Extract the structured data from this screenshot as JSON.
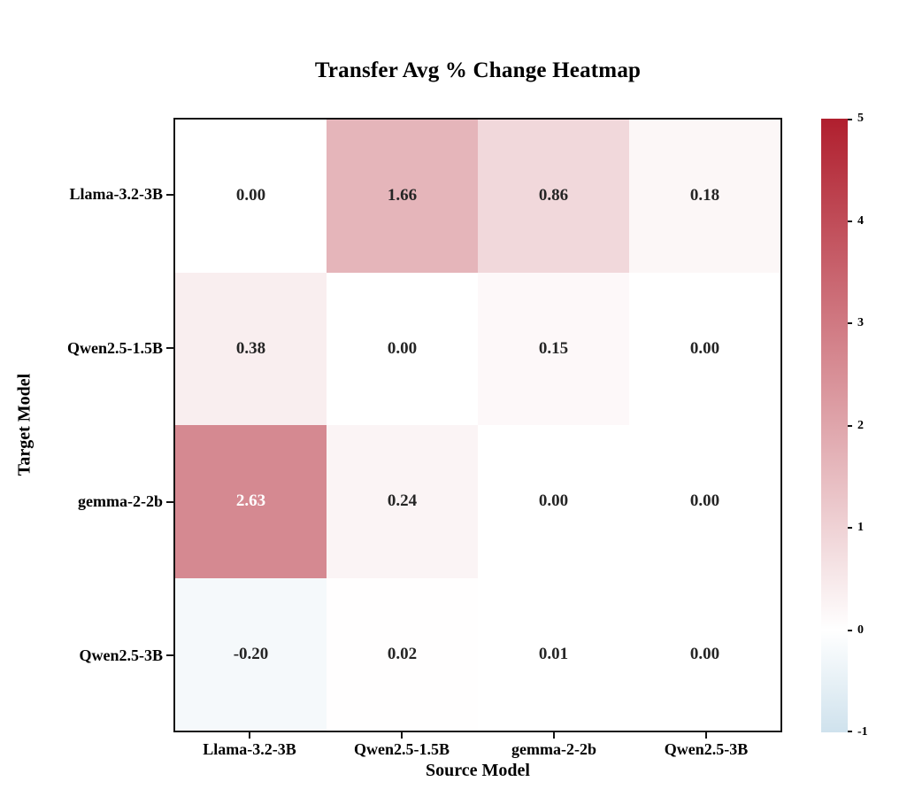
{
  "title": "Transfer Avg % Change Heatmap",
  "xlabel": "Source Model",
  "ylabel": "Target Model",
  "chart_data": {
    "type": "heatmap",
    "x_categories": [
      "Llama-3.2-3B",
      "Qwen2.5-1.5B",
      "gemma-2-2b",
      "Qwen2.5-3B"
    ],
    "y_categories": [
      "Llama-3.2-3B",
      "Qwen2.5-1.5B",
      "gemma-2-2b",
      "Qwen2.5-3B"
    ],
    "values": [
      [
        0.0,
        1.66,
        0.86,
        0.18
      ],
      [
        0.38,
        0.0,
        0.15,
        0.0
      ],
      [
        2.63,
        0.24,
        0.0,
        0.0
      ],
      [
        -0.2,
        0.02,
        0.01,
        0.0
      ]
    ],
    "value_labels": [
      [
        "0.00",
        "1.66",
        "0.86",
        "0.18"
      ],
      [
        "0.38",
        "0.00",
        "0.15",
        "0.00"
      ],
      [
        "2.63",
        "0.24",
        "0.00",
        "0.00"
      ],
      [
        "-0.20",
        "0.02",
        "0.01",
        "0.00"
      ]
    ],
    "colorbar": {
      "min": -1,
      "max": 5,
      "tick_labels": [
        "5",
        "4",
        "3",
        "2",
        "1",
        "0",
        "-1"
      ],
      "tick_values": [
        5,
        4,
        3,
        2,
        1,
        0,
        -1
      ]
    },
    "colors": {
      "positive_max": "#b01f2e",
      "zero": "#ffffff",
      "negative_max": "#cfe2ed",
      "annotation_dark": "#252525",
      "annotation_light": "#ffffff",
      "axis": "#141414"
    },
    "legend_position": "right-colorbar",
    "grid": false
  }
}
